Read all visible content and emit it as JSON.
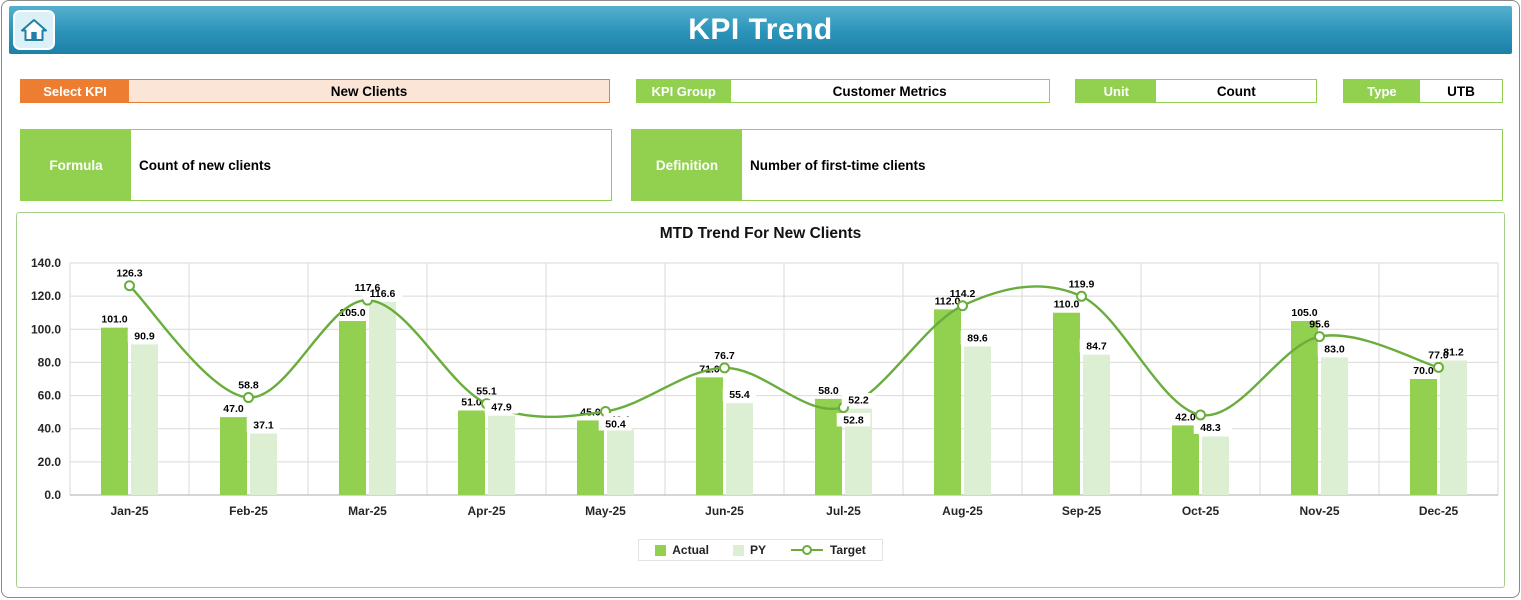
{
  "header": {
    "title": "KPI Trend"
  },
  "controls": {
    "select_kpi": {
      "label": "Select KPI",
      "value": "New Clients"
    },
    "kpi_group": {
      "label": "KPI Group",
      "value": "Customer Metrics"
    },
    "unit": {
      "label": "Unit",
      "value": "Count"
    },
    "type": {
      "label": "Type",
      "value": "UTB"
    },
    "formula": {
      "label": "Formula",
      "value": "Count of new clients"
    },
    "definition": {
      "label": "Definition",
      "value": "Number of first-time clients"
    }
  },
  "colors": {
    "header_teal": "#2B93B9",
    "accent_orange": "#ED7D31",
    "accent_orange_fill": "#FBE5D6",
    "accent_green": "#92D050",
    "gridline": "#DADADA"
  },
  "chart_data": {
    "type": "combo-bar-line",
    "title": "MTD Trend For New Clients",
    "categories": [
      "Jan-25",
      "Feb-25",
      "Mar-25",
      "Apr-25",
      "May-25",
      "Jun-25",
      "Jul-25",
      "Aug-25",
      "Sep-25",
      "Oct-25",
      "Nov-25",
      "Dec-25"
    ],
    "series": [
      {
        "name": "Actual",
        "type": "bar",
        "color": "#92D050",
        "values": [
          101.0,
          47.0,
          105.0,
          51.0,
          45.0,
          71.0,
          58.0,
          112.0,
          110.0,
          42.0,
          105.0,
          70.0
        ]
      },
      {
        "name": "PY",
        "type": "bar",
        "color": "#DCEFD3",
        "values": [
          90.9,
          37.1,
          116.6,
          47.9,
          40.1,
          55.4,
          52.2,
          89.6,
          84.7,
          35.3,
          83.0,
          81.2
        ]
      },
      {
        "name": "Target",
        "type": "line",
        "color": "#69AD3C",
        "values": [
          126.3,
          58.8,
          117.6,
          55.1,
          50.4,
          76.7,
          52.8,
          114.2,
          119.9,
          48.3,
          95.6,
          77.0
        ]
      }
    ],
    "ylim": [
      0,
      140
    ],
    "ytick_step": 20,
    "ytick_format_decimals": 1,
    "grid": true,
    "legend_position": "bottom",
    "target_label_below": [
      false,
      false,
      false,
      false,
      true,
      false,
      true,
      false,
      false,
      true,
      false,
      false
    ]
  }
}
